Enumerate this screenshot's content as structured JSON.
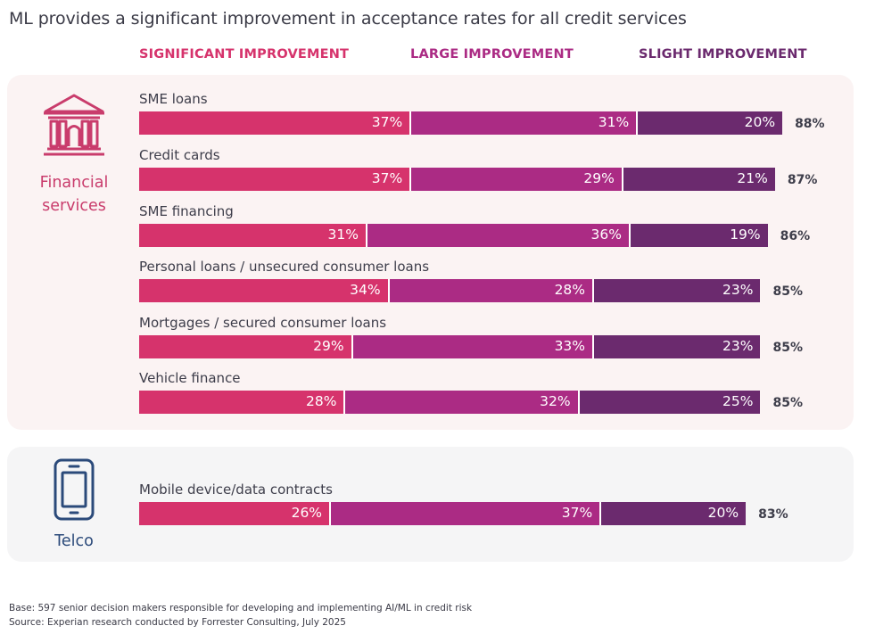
{
  "title": "ML provides a significant improvement in acceptance rates for all credit services",
  "colors": {
    "significant": "#d6336c",
    "large": "#ab2b84",
    "slight": "#6b2a6e",
    "fin_label": "#c93c6c",
    "telco_label": "#2b4a7a"
  },
  "chart_data": {
    "type": "bar",
    "orientation": "horizontal",
    "stacked": true,
    "legend_placement": "top",
    "series": [
      {
        "name": "SIGNIFICANT IMPROVEMENT",
        "values": [
          37,
          37,
          31,
          34,
          29,
          28,
          26
        ]
      },
      {
        "name": "LARGE IMPROVEMENT",
        "values": [
          31,
          29,
          36,
          28,
          33,
          32,
          37
        ]
      },
      {
        "name": "SLIGHT IMPROVEMENT",
        "values": [
          20,
          21,
          19,
          23,
          23,
          25,
          20
        ]
      }
    ],
    "categories": [
      "SME loans",
      "Credit cards",
      "SME financing",
      "Personal loans / unsecured consumer loans",
      "Mortgages / secured consumer loans",
      "Vehicle finance",
      "Mobile device/data contracts"
    ],
    "segment_labels": [
      [
        "37%",
        "31%",
        "20%"
      ],
      [
        "37%",
        "29%",
        "21%"
      ],
      [
        "31%",
        "36%",
        "19%"
      ],
      [
        "34%",
        "28%",
        "23%"
      ],
      [
        "29%",
        "33%",
        "23%"
      ],
      [
        "28%",
        "32%",
        "25%"
      ],
      [
        "26%",
        "37%",
        "20%"
      ]
    ],
    "totals": [
      "88%",
      "87%",
      "86%",
      "85%",
      "85%",
      "85%",
      "83%"
    ],
    "groups": [
      {
        "name": "Financial services",
        "categories": [
          0,
          1,
          2,
          3,
          4,
          5
        ],
        "icon": "bank-icon"
      },
      {
        "name": "Telco",
        "categories": [
          6
        ],
        "icon": "mobile-phone-icon"
      }
    ]
  },
  "footnotes": {
    "base": "Base: 597 senior decision makers responsible for developing and implementing AI/ML in credit risk",
    "source": "Source: Experian research conducted by Forrester Consulting, July 2025"
  }
}
